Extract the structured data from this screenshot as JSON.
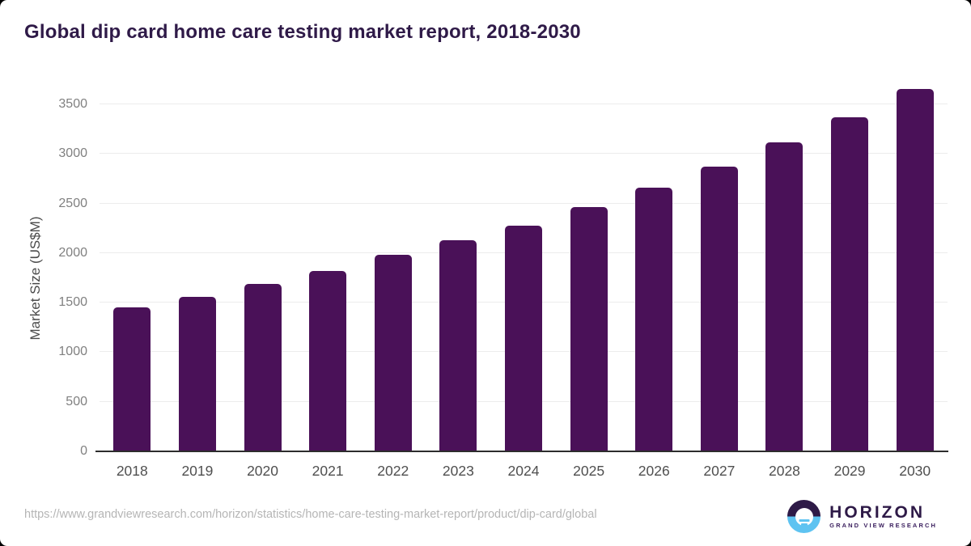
{
  "page": {
    "title": "Global dip card home care testing market report, 2018-2030",
    "source_url": "https://www.grandviewresearch.com/horizon/statistics/home-care-testing-market-report/product/dip-card/global"
  },
  "logo": {
    "icon": "horizon-sunset-circle-icon",
    "brand": "HORIZON",
    "sub_brand": "GRAND VIEW RESEARCH"
  },
  "colors": {
    "bar": "#4a1158",
    "title_text": "#2f1a48",
    "grid_line": "#ececec",
    "axis_line": "#2d2d2d",
    "y_tick_text": "#808080",
    "x_tick_text": "#4f4f4f",
    "axis_title_text": "#4a4a4a",
    "url_text": "#b5b5b5",
    "logo_purple": "#2e1a47",
    "logo_blue": "#5ec3f1"
  },
  "chart_data": {
    "type": "bar",
    "title": "Global dip card home care testing market report, 2018-2030",
    "categories": [
      "2018",
      "2019",
      "2020",
      "2021",
      "2022",
      "2023",
      "2024",
      "2025",
      "2026",
      "2027",
      "2028",
      "2029",
      "2030"
    ],
    "values": [
      1450,
      1560,
      1690,
      1820,
      1980,
      2130,
      2280,
      2460,
      2660,
      2875,
      3115,
      3370,
      3655
    ],
    "xlabel": "",
    "ylabel": "Market Size (US$M)",
    "ylim": [
      0,
      3500
    ],
    "ytick_step": 500,
    "grid": true,
    "legend_position": "none",
    "bar_color": "#4a1158"
  }
}
